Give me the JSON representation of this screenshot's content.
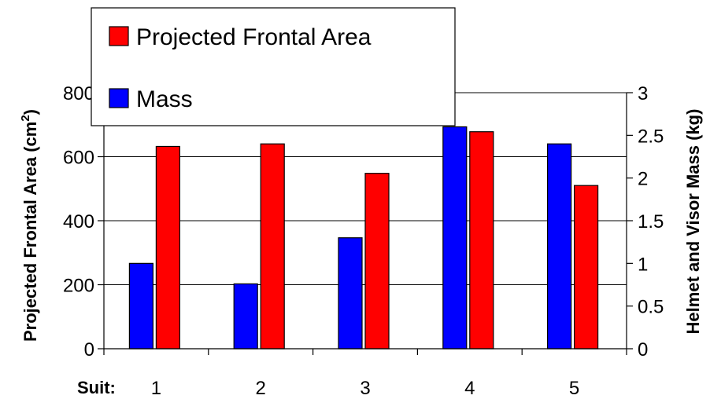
{
  "chart_data": {
    "type": "bar",
    "categories": [
      "1",
      "2",
      "3",
      "4",
      "5"
    ],
    "xlabel": "Suit:",
    "ylabel_left": "Projected Frontal Area (cm",
    "ylabel_left_sup": "2",
    "ylabel_left_close": ")",
    "ylabel_right": "Helmet and Visor Mass (kg)",
    "ylim_left": [
      0,
      800
    ],
    "ylim_right": [
      0,
      3
    ],
    "yticks_left": [
      "0",
      "200",
      "400",
      "600",
      "800"
    ],
    "yticks_right": [
      "0",
      "0.5",
      "1",
      "1.5",
      "2",
      "2.5",
      "3"
    ],
    "grid": true,
    "legend_position": "top-left",
    "series": [
      {
        "name": "Mass",
        "axis": "right",
        "color": "#0000ff",
        "values": [
          1.0,
          0.76,
          1.3,
          2.6,
          2.4
        ]
      },
      {
        "name": "Projected Frontal Area",
        "axis": "left",
        "color": "#ff0000",
        "values": [
          632,
          640,
          548,
          678,
          510
        ]
      }
    ],
    "legend": [
      "Projected Frontal Area",
      "Mass"
    ]
  }
}
